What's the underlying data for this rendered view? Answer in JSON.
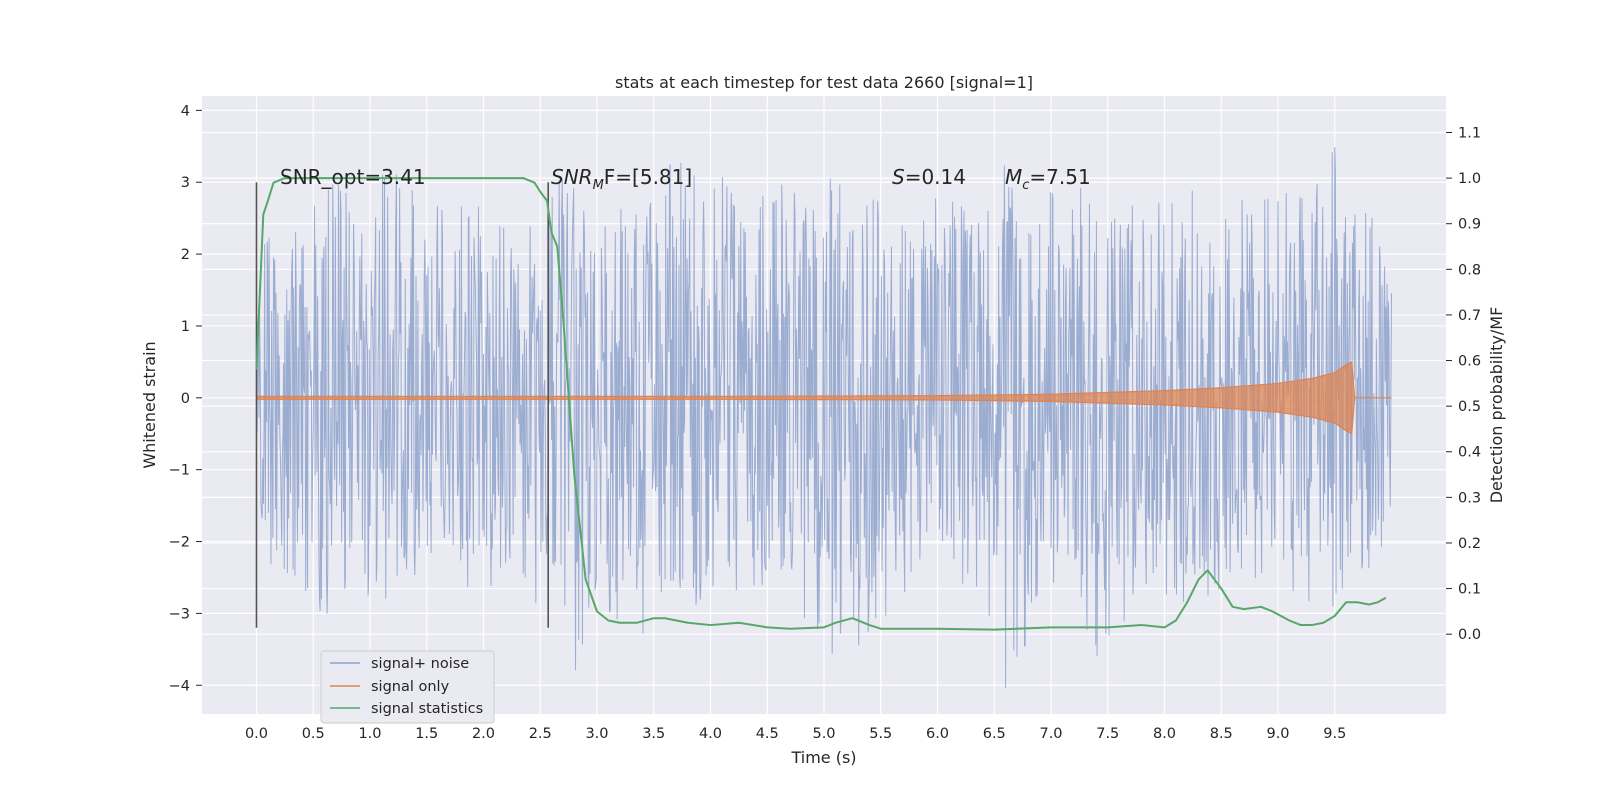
{
  "chart_data": {
    "type": "line",
    "title": "stats at each timestep for test data 2660 [signal=1]",
    "xlabel": "Time (s)",
    "ylabel": "Whitened strain",
    "y2label": "Detection probability/MF",
    "xlim": [
      -0.48,
      10.48
    ],
    "ylim": [
      -4.4,
      4.2
    ],
    "y2lim": [
      -0.175,
      1.18
    ],
    "xticks": [
      0.0,
      0.5,
      1.0,
      1.5,
      2.0,
      2.5,
      3.0,
      3.5,
      4.0,
      4.5,
      5.0,
      5.5,
      6.0,
      6.5,
      7.0,
      7.5,
      8.0,
      8.5,
      9.0,
      9.5
    ],
    "xtick_labels": [
      "0.0",
      "0.5",
      "1.0",
      "1.5",
      "2.0",
      "2.5",
      "3.0",
      "3.5",
      "4.0",
      "4.5",
      "5.0",
      "5.5",
      "6.0",
      "6.5",
      "7.0",
      "7.5",
      "8.0",
      "8.5",
      "9.0",
      "9.5"
    ],
    "yticks": [
      -4,
      -3,
      -2,
      -1,
      0,
      1,
      2,
      3,
      4
    ],
    "ytick_labels": [
      "−4",
      "−3",
      "−2",
      "−1",
      "0",
      "1",
      "2",
      "3",
      "4"
    ],
    "y2ticks": [
      0.0,
      0.1,
      0.2,
      0.3,
      0.4,
      0.5,
      0.6,
      0.7,
      0.8,
      0.9,
      1.0,
      1.1
    ],
    "y2tick_labels": [
      "0.0",
      "0.1",
      "0.2",
      "0.3",
      "0.4",
      "0.5",
      "0.6",
      "0.7",
      "0.8",
      "0.9",
      "1.0",
      "1.1"
    ],
    "grid": true,
    "legend_position": "lower-left",
    "annotations": {
      "snr_opt": "SNR_opt=3.41",
      "snr_mf_base": "SNR",
      "snr_mf_sub": "M",
      "snr_mf_rest": "F=[5.81]",
      "s_var": "S",
      "s_value": "=0.14",
      "mc_var": "M",
      "mc_sub": "c",
      "mc_value": "=7.51"
    },
    "vertical_lines": [
      0.0,
      2.57
    ],
    "series": [
      {
        "name": "signal+ noise",
        "color": "#8da1cb",
        "axis": "left",
        "envelope_upper": [
          [
            0.0,
            1.6
          ],
          [
            0.1,
            2.6
          ],
          [
            0.5,
            2.5
          ],
          [
            0.6,
            3.2
          ],
          [
            1.0,
            2.5
          ],
          [
            1.1,
            3.3
          ],
          [
            1.6,
            2.7
          ],
          [
            2.0,
            2.7
          ],
          [
            2.3,
            2.4
          ],
          [
            2.6,
            3.1
          ],
          [
            3.0,
            2.8
          ],
          [
            3.3,
            2.6
          ],
          [
            3.6,
            3.3
          ],
          [
            4.0,
            3.5
          ],
          [
            4.3,
            2.6
          ],
          [
            4.6,
            3.0
          ],
          [
            5.0,
            2.7
          ],
          [
            5.4,
            3.0
          ],
          [
            5.7,
            2.6
          ],
          [
            6.0,
            2.9
          ],
          [
            6.3,
            2.6
          ],
          [
            6.7,
            2.7
          ],
          [
            7.0,
            2.9
          ],
          [
            7.4,
            2.7
          ],
          [
            7.7,
            2.8
          ],
          [
            8.0,
            2.8
          ],
          [
            8.3,
            3.1
          ],
          [
            8.7,
            2.8
          ],
          [
            9.0,
            2.9
          ],
          [
            9.3,
            2.8
          ],
          [
            9.5,
            3.9
          ],
          [
            9.6,
            2.6
          ],
          [
            9.8,
            2.8
          ],
          [
            10.0,
            1.5
          ]
        ],
        "envelope_lower": [
          [
            0.0,
            -1.6
          ],
          [
            0.1,
            -2.3
          ],
          [
            0.4,
            -2.6
          ],
          [
            0.5,
            -3.2
          ],
          [
            0.9,
            -2.7
          ],
          [
            1.1,
            -3.1
          ],
          [
            1.5,
            -2.4
          ],
          [
            2.0,
            -2.8
          ],
          [
            2.3,
            -2.5
          ],
          [
            2.8,
            -4.0
          ],
          [
            3.0,
            -2.8
          ],
          [
            3.4,
            -3.5
          ],
          [
            3.8,
            -2.6
          ],
          [
            4.2,
            -3.0
          ],
          [
            4.6,
            -2.6
          ],
          [
            5.1,
            -3.7
          ],
          [
            5.4,
            -3.4
          ],
          [
            5.8,
            -2.6
          ],
          [
            6.2,
            -2.6
          ],
          [
            6.6,
            -4.1
          ],
          [
            7.0,
            -2.6
          ],
          [
            7.4,
            -4.0
          ],
          [
            7.8,
            -2.6
          ],
          [
            8.2,
            -3.1
          ],
          [
            8.6,
            -2.5
          ],
          [
            9.0,
            -2.6
          ],
          [
            9.4,
            -3.1
          ],
          [
            9.7,
            -2.8
          ],
          [
            10.0,
            -1.8
          ]
        ]
      },
      {
        "name": "signal only",
        "color": "#dd8452",
        "axis": "left",
        "amplitude": [
          [
            0.0,
            0.02
          ],
          [
            2.0,
            0.02
          ],
          [
            4.0,
            0.02
          ],
          [
            6.0,
            0.03
          ],
          [
            7.0,
            0.05
          ],
          [
            8.0,
            0.1
          ],
          [
            8.5,
            0.14
          ],
          [
            9.0,
            0.2
          ],
          [
            9.3,
            0.27
          ],
          [
            9.5,
            0.35
          ],
          [
            9.6,
            0.46
          ],
          [
            9.65,
            0.5
          ],
          [
            9.66,
            0.0
          ],
          [
            10.0,
            0.0
          ]
        ]
      },
      {
        "name": "signal statistics",
        "color": "#55a868",
        "axis": "right",
        "x": [
          0.0,
          0.03,
          0.06,
          0.1,
          0.15,
          0.25,
          0.5,
          1.0,
          1.5,
          2.0,
          2.2,
          2.35,
          2.45,
          2.5,
          2.56,
          2.6,
          2.65,
          2.7,
          2.8,
          2.9,
          3.0,
          3.1,
          3.2,
          3.35,
          3.5,
          3.6,
          3.8,
          4.0,
          4.25,
          4.5,
          4.7,
          5.0,
          5.1,
          5.25,
          5.4,
          5.5,
          6.0,
          6.5,
          7.0,
          7.5,
          7.8,
          8.0,
          8.1,
          8.2,
          8.3,
          8.38,
          8.5,
          8.6,
          8.7,
          8.85,
          8.95,
          9.1,
          9.2,
          9.3,
          9.4,
          9.5,
          9.6,
          9.7,
          9.8,
          9.88,
          9.95
        ],
        "y": [
          0.58,
          0.75,
          0.92,
          0.95,
          0.99,
          1.0,
          1.0,
          1.0,
          1.0,
          1.0,
          1.0,
          1.0,
          0.99,
          0.97,
          0.95,
          0.88,
          0.85,
          0.7,
          0.35,
          0.12,
          0.05,
          0.03,
          0.025,
          0.025,
          0.035,
          0.035,
          0.025,
          0.02,
          0.025,
          0.015,
          0.012,
          0.015,
          0.025,
          0.035,
          0.02,
          0.012,
          0.012,
          0.01,
          0.015,
          0.015,
          0.02,
          0.015,
          0.03,
          0.07,
          0.12,
          0.14,
          0.1,
          0.06,
          0.055,
          0.06,
          0.05,
          0.03,
          0.02,
          0.02,
          0.025,
          0.04,
          0.07,
          0.07,
          0.065,
          0.07,
          0.08
        ]
      }
    ]
  }
}
